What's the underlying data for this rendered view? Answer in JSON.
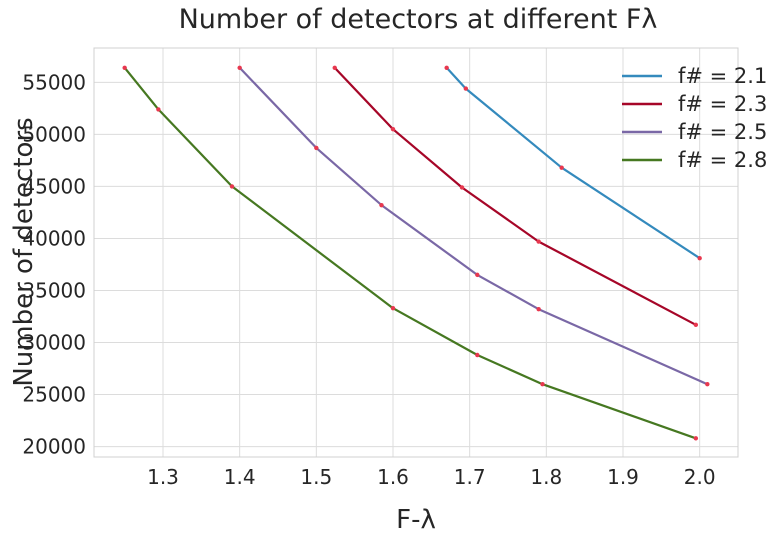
{
  "chart_data": {
    "type": "line",
    "title": "Number of detectors at different Fλ",
    "xlabel": "F-λ",
    "ylabel": "Number of detectors",
    "xlim": [
      1.21,
      2.05
    ],
    "ylim": [
      19000,
      58300
    ],
    "xticks": [
      1.3,
      1.4,
      1.5,
      1.6,
      1.7,
      1.8,
      1.9,
      2.0
    ],
    "xtick_labels": [
      "1.3",
      "1.4",
      "1.5",
      "1.6",
      "1.7",
      "1.8",
      "1.9",
      "2.0"
    ],
    "yticks": [
      20000,
      25000,
      30000,
      35000,
      40000,
      45000,
      50000,
      55000
    ],
    "ytick_labels": [
      "20000",
      "25000",
      "30000",
      "35000",
      "40000",
      "45000",
      "50000",
      "55000"
    ],
    "grid": true,
    "legend_position": "top-right",
    "marker_color": "#e8384f",
    "series": [
      {
        "name": "f# = 2.1",
        "color": "#348abd",
        "x": [
          1.67,
          1.695,
          1.82,
          2.0
        ],
        "y": [
          56400,
          54400,
          46800,
          38100
        ]
      },
      {
        "name": "f# = 2.3",
        "color": "#a60628",
        "x": [
          1.524,
          1.6,
          1.69,
          1.79,
          1.995
        ],
        "y": [
          56400,
          50500,
          44900,
          39700,
          31700
        ]
      },
      {
        "name": "f# = 2.5",
        "color": "#7a68a6",
        "x": [
          1.4,
          1.5,
          1.585,
          1.71,
          1.79,
          2.01
        ],
        "y": [
          56400,
          48700,
          43200,
          36500,
          33200,
          26000
        ]
      },
      {
        "name": "f# = 2.8",
        "color": "#467821",
        "x": [
          1.25,
          1.294,
          1.39,
          1.6,
          1.71,
          1.795,
          1.995
        ],
        "y": [
          56400,
          52400,
          45000,
          33300,
          28800,
          26000,
          20800
        ]
      }
    ]
  }
}
